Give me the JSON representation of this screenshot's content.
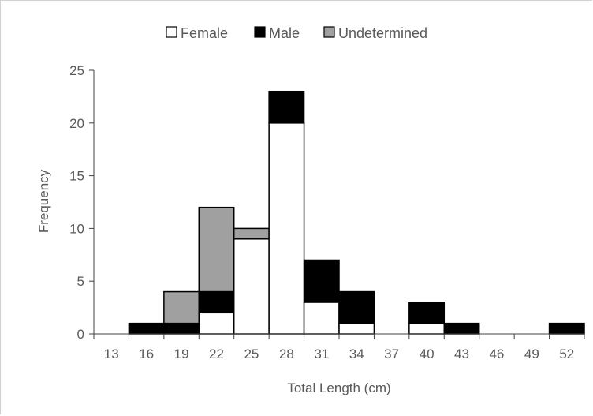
{
  "chart_data": {
    "type": "bar",
    "stacked": true,
    "categories": [
      "13",
      "16",
      "19",
      "22",
      "25",
      "28",
      "31",
      "34",
      "37",
      "40",
      "43",
      "46",
      "49",
      "52"
    ],
    "series": [
      {
        "name": "Female",
        "color": "#ffffff",
        "values": [
          0,
          0,
          0,
          2,
          9,
          20,
          3,
          1,
          0,
          1,
          0,
          0,
          0,
          0
        ]
      },
      {
        "name": "Male",
        "color": "#000000",
        "values": [
          0,
          1,
          1,
          2,
          0,
          3,
          4,
          3,
          0,
          2,
          1,
          0,
          0,
          1
        ]
      },
      {
        "name": "Undetermined",
        "color": "#a0a0a0",
        "values": [
          0,
          0,
          3,
          8,
          1,
          0,
          0,
          0,
          0,
          0,
          0,
          0,
          0,
          0
        ]
      }
    ],
    "xlabel": "Total Length (cm)",
    "ylabel": "Frequency",
    "ylim": [
      0,
      25
    ],
    "yticks": [
      "0",
      "5",
      "10",
      "15",
      "20",
      "25"
    ],
    "grid": false,
    "legend_position": "top"
  }
}
